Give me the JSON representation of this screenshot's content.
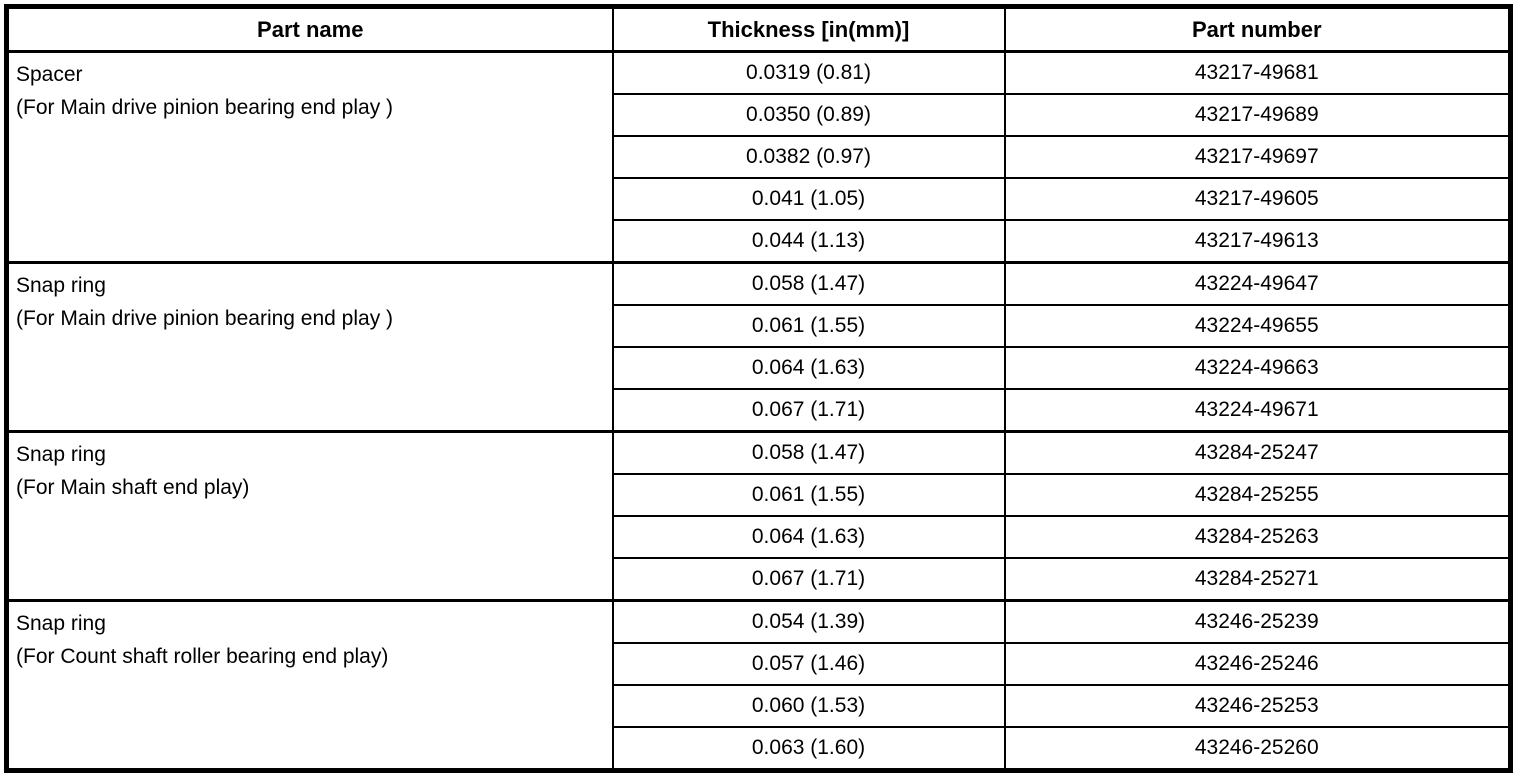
{
  "table": {
    "columns": [
      "Part name",
      "Thickness [in(mm)]",
      "Part number"
    ],
    "groups": [
      {
        "part_name": "Spacer",
        "part_note": "(For Main drive pinion bearing end play )",
        "rows": [
          {
            "thickness": "0.0319 (0.81)",
            "part_number": "43217-49681"
          },
          {
            "thickness": "0.0350 (0.89)",
            "part_number": "43217-49689"
          },
          {
            "thickness": "0.0382 (0.97)",
            "part_number": "43217-49697"
          },
          {
            "thickness": "0.041 (1.05)",
            "part_number": "43217-49605"
          },
          {
            "thickness": "0.044 (1.13)",
            "part_number": "43217-49613"
          }
        ]
      },
      {
        "part_name": "Snap ring",
        "part_note": "(For Main drive pinion bearing end play )",
        "rows": [
          {
            "thickness": "0.058 (1.47)",
            "part_number": "43224-49647"
          },
          {
            "thickness": "0.061 (1.55)",
            "part_number": "43224-49655"
          },
          {
            "thickness": "0.064 (1.63)",
            "part_number": "43224-49663"
          },
          {
            "thickness": "0.067 (1.71)",
            "part_number": "43224-49671"
          }
        ]
      },
      {
        "part_name": "Snap ring",
        "part_note": "(For Main shaft end play)",
        "rows": [
          {
            "thickness": "0.058 (1.47)",
            "part_number": "43284-25247"
          },
          {
            "thickness": "0.061 (1.55)",
            "part_number": "43284-25255"
          },
          {
            "thickness": "0.064 (1.63)",
            "part_number": "43284-25263"
          },
          {
            "thickness": "0.067 (1.71)",
            "part_number": "43284-25271"
          }
        ]
      },
      {
        "part_name": "Snap ring",
        "part_note": "(For Count shaft roller bearing end play)",
        "rows": [
          {
            "thickness": "0.054 (1.39)",
            "part_number": "43246-25239"
          },
          {
            "thickness": "0.057 (1.46)",
            "part_number": "43246-25246"
          },
          {
            "thickness": "0.060 (1.53)",
            "part_number": "43246-25253"
          },
          {
            "thickness": "0.063 (1.60)",
            "part_number": "43246-25260"
          }
        ]
      }
    ],
    "colors": {
      "border": "#000000",
      "text": "#000000",
      "background": "#ffffff"
    }
  }
}
